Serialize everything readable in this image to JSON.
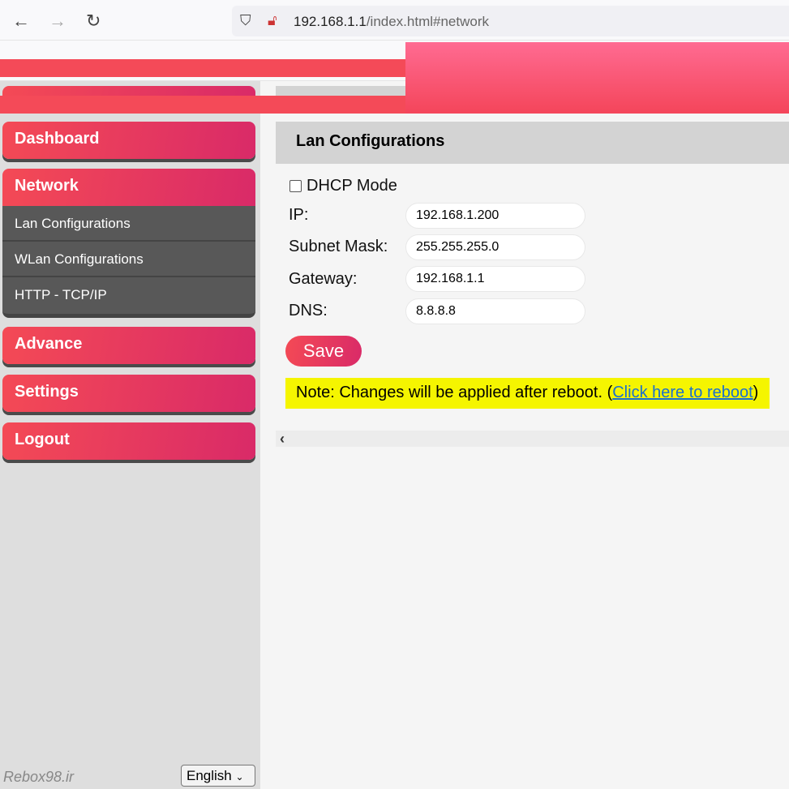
{
  "browser": {
    "url_host": "192.168.1.1",
    "url_path": "/index.html#network",
    "back": "←",
    "forward": "→",
    "reload": "↻"
  },
  "sidebar": {
    "items": [
      {
        "label": "Dashboard"
      },
      {
        "label": "Network"
      },
      {
        "label": "Advance"
      },
      {
        "label": "Settings"
      },
      {
        "label": "Logout"
      }
    ],
    "subitems": [
      {
        "label": "Lan Configurations"
      },
      {
        "label": "WLan Configurations"
      },
      {
        "label": "HTTP - TCP/IP"
      }
    ],
    "brand": "Rebox98.ir",
    "language": "English"
  },
  "panel": {
    "title": "Lan Configurations",
    "dhcp_label": "DHCP Mode",
    "dhcp_checked": false,
    "fields": [
      {
        "label": "IP:",
        "value": "192.168.1.200"
      },
      {
        "label": "Subnet Mask:",
        "value": "255.255.255.0"
      },
      {
        "label": "Gateway:",
        "value": "192.168.1.1"
      },
      {
        "label": "DNS:",
        "value": "8.8.8.8"
      }
    ],
    "save": "Save",
    "note_prefix": "Note: Changes will be applied after reboot. (",
    "note_link": "Click here to reboot",
    "note_suffix": ")",
    "scroll_left": "‹"
  }
}
